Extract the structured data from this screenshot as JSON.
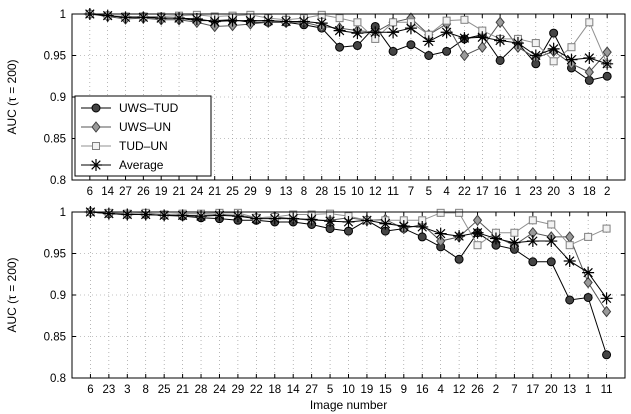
{
  "figure": {
    "xlabel": "Image number"
  },
  "legend": [
    "UWS–TUD",
    "UWS–UN",
    "TUD–UN",
    "Average"
  ],
  "chart_data": [
    {
      "type": "line",
      "ylabel": "AUC (τ = 200)",
      "ylim": [
        0.8,
        1
      ],
      "yticks": [
        "0.8",
        "0.85",
        "0.9",
        "0.95",
        "1"
      ],
      "grid": true,
      "legend_position": "lower-left",
      "categories": [
        "6",
        "14",
        "27",
        "26",
        "19",
        "21",
        "24",
        "21",
        "25",
        "29",
        "9",
        "13",
        "8",
        "28",
        "15",
        "10",
        "12",
        "11",
        "7",
        "5",
        "4",
        "22",
        "17",
        "16",
        "1",
        "23",
        "20",
        "3",
        "18",
        "2"
      ],
      "series": [
        {
          "name": "UWS–TUD",
          "marker": "circle",
          "values": [
            1,
            0.998,
            0.996,
            0.997,
            0.995,
            0.995,
            0.992,
            0.992,
            0.993,
            0.99,
            0.99,
            0.99,
            0.987,
            0.983,
            0.96,
            0.962,
            0.985,
            0.955,
            0.963,
            0.95,
            0.955,
            0.97,
            0.975,
            0.944,
            0.965,
            0.94,
            0.977,
            0.935,
            0.92,
            0.925
          ]
        },
        {
          "name": "UWS–UN",
          "marker": "diamond",
          "values": [
            1,
            0.997,
            0.994,
            0.995,
            0.993,
            0.993,
            0.99,
            0.985,
            0.986,
            0.988,
            0.99,
            0.99,
            0.99,
            0.985,
            0.983,
            0.98,
            0.978,
            0.99,
            0.995,
            0.975,
            0.988,
            0.95,
            0.96,
            0.99,
            0.96,
            0.947,
            0.955,
            0.94,
            0.93,
            0.954
          ]
        },
        {
          "name": "TUD–UN",
          "marker": "square",
          "values": [
            1,
            0.998,
            0.997,
            0.997,
            0.997,
            0.998,
            0.999,
            0.997,
            0.998,
            0.999,
            0.995,
            0.993,
            0.995,
            0.999,
            0.995,
            0.99,
            0.97,
            0.99,
            0.99,
            0.975,
            0.992,
            0.993,
            0.98,
            0.97,
            0.97,
            0.965,
            0.943,
            0.96,
            0.99,
            0.94
          ]
        },
        {
          "name": "Average",
          "marker": "asterisk",
          "values": [
            1,
            0.998,
            0.996,
            0.996,
            0.995,
            0.995,
            0.994,
            0.991,
            0.992,
            0.992,
            0.992,
            0.991,
            0.991,
            0.989,
            0.98,
            0.977,
            0.978,
            0.978,
            0.983,
            0.967,
            0.978,
            0.971,
            0.972,
            0.968,
            0.965,
            0.95,
            0.958,
            0.945,
            0.947,
            0.94
          ]
        }
      ]
    },
    {
      "type": "line",
      "ylabel": "AUC (τ = 200)",
      "ylim": [
        0.8,
        1
      ],
      "yticks": [
        "0.8",
        "0.85",
        "0.9",
        "0.95",
        "1"
      ],
      "grid": true,
      "categories": [
        "6",
        "23",
        "3",
        "8",
        "25",
        "21",
        "28",
        "24",
        "29",
        "22",
        "18",
        "14",
        "27",
        "5",
        "10",
        "19",
        "15",
        "9",
        "16",
        "4",
        "12",
        "26",
        "2",
        "7",
        "17",
        "20",
        "13",
        "1",
        "11"
      ],
      "series": [
        {
          "name": "UWS–TUD",
          "marker": "circle",
          "values": [
            1,
            0.998,
            0.997,
            0.997,
            0.996,
            0.995,
            0.993,
            0.992,
            0.99,
            0.99,
            0.988,
            0.988,
            0.985,
            0.98,
            0.977,
            0.99,
            0.977,
            0.98,
            0.97,
            0.958,
            0.943,
            0.975,
            0.96,
            0.955,
            0.94,
            0.94,
            0.894,
            0.897,
            0.828
          ]
        },
        {
          "name": "UWS–UN",
          "marker": "diamond",
          "values": [
            1,
            0.998,
            0.997,
            0.997,
            0.996,
            0.996,
            0.996,
            0.997,
            0.996,
            0.993,
            0.994,
            0.992,
            0.99,
            0.99,
            0.993,
            0.99,
            0.991,
            0.98,
            0.985,
            0.965,
            0.97,
            0.99,
            0.97,
            0.96,
            0.975,
            0.97,
            0.97,
            0.915,
            0.88
          ]
        },
        {
          "name": "TUD–UN",
          "marker": "square",
          "values": [
            1,
            0.999,
            0.998,
            0.999,
            0.997,
            0.998,
            0.998,
            0.999,
            0.999,
            0.993,
            0.994,
            0.997,
            0.997,
            0.998,
            0.995,
            0.99,
            0.99,
            0.99,
            0.99,
            0.999,
            0.999,
            0.96,
            0.975,
            0.975,
            0.99,
            0.985,
            0.96,
            0.97,
            0.98
          ]
        },
        {
          "name": "Average",
          "marker": "asterisk",
          "values": [
            1,
            0.998,
            0.997,
            0.997,
            0.996,
            0.996,
            0.995,
            0.996,
            0.995,
            0.992,
            0.992,
            0.992,
            0.991,
            0.989,
            0.988,
            0.99,
            0.986,
            0.983,
            0.982,
            0.974,
            0.971,
            0.975,
            0.968,
            0.963,
            0.965,
            0.965,
            0.941,
            0.927,
            0.896
          ]
        }
      ]
    }
  ]
}
